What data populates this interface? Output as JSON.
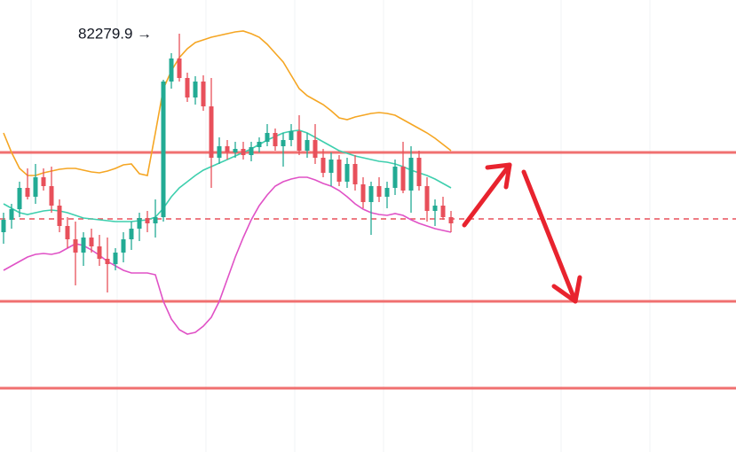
{
  "chart_data": {
    "type": "candlestick",
    "annotation": "82279.9 →",
    "ylim": [
      77560,
      82660
    ],
    "up_color": "#22ab94",
    "down_color": "#e8505b",
    "open": [
      80040,
      80180,
      80300,
      80540,
      80440,
      80660,
      80560,
      80340,
      80110,
      79960,
      79810,
      79980,
      79880,
      79740,
      79680,
      79810,
      79960,
      80080,
      80200,
      80140,
      80210,
      81740,
      82000,
      81780,
      81560,
      81740,
      81460,
      80880,
      81010,
      80940,
      80980,
      80910,
      81000,
      81060,
      81160,
      81010,
      81080,
      81180,
      80960,
      81080,
      80880,
      80710,
      80860,
      80610,
      80810,
      80580,
      80380,
      80560,
      80440,
      80540,
      80780,
      80510,
      80880,
      80560,
      80280,
      80340,
      80210
    ],
    "high": [
      80260,
      80360,
      80610,
      80760,
      80810,
      80760,
      80780,
      80410,
      80210,
      80160,
      80040,
      80080,
      80010,
      79980,
      79860,
      80040,
      80160,
      80260,
      80280,
      80410,
      81760,
      82060,
      82279.9,
      81840,
      81800,
      81810,
      81780,
      81110,
      81080,
      81060,
      81060,
      81060,
      81110,
      81260,
      81210,
      81160,
      81260,
      81360,
      81160,
      81260,
      80980,
      80940,
      80910,
      80880,
      80910,
      80660,
      80610,
      80660,
      80610,
      80860,
      81060,
      81010,
      80960,
      80660,
      80410,
      80440,
      80280
    ],
    "low": [
      79910,
      80080,
      80210,
      80410,
      80360,
      80510,
      80260,
      80040,
      79860,
      79440,
      79660,
      79810,
      79660,
      79360,
      79610,
      79700,
      79840,
      79940,
      80040,
      79980,
      80160,
      81660,
      81740,
      81510,
      81480,
      81410,
      80540,
      80810,
      80860,
      80880,
      80860,
      80840,
      80940,
      81010,
      80960,
      80780,
      81010,
      80910,
      80880,
      80810,
      80660,
      80560,
      80560,
      80540,
      80510,
      80310,
      80010,
      80380,
      80310,
      80460,
      80480,
      80260,
      80510,
      80160,
      80110,
      80180,
      80040
    ],
    "close": [
      80180,
      80300,
      80540,
      80440,
      80660,
      80560,
      80340,
      80110,
      79960,
      79810,
      79980,
      79880,
      79740,
      79680,
      79810,
      79960,
      80080,
      80200,
      80140,
      80210,
      81740,
      82000,
      81780,
      81560,
      81740,
      81460,
      80880,
      81010,
      80940,
      80980,
      80910,
      81000,
      81060,
      81160,
      81010,
      81080,
      81180,
      80960,
      81080,
      80880,
      80710,
      80860,
      80610,
      80810,
      80580,
      80380,
      80560,
      80440,
      80540,
      80780,
      80510,
      80880,
      80560,
      80280,
      80340,
      80210,
      80140
    ],
    "bands": [
      {
        "color": "#f5a623",
        "values": [
          81160,
          80940,
          80760,
          80680,
          80680,
          80710,
          80730,
          80750,
          80760,
          80760,
          80740,
          80720,
          80710,
          80730,
          80760,
          80800,
          80810,
          80700,
          80680,
          81160,
          81660,
          81860,
          82010,
          82110,
          82180,
          82210,
          82240,
          82260,
          82280,
          82300,
          82310,
          82280,
          82240,
          82160,
          82060,
          81960,
          81810,
          81660,
          81580,
          81530,
          81480,
          81410,
          81330,
          81310,
          81340,
          81360,
          81380,
          81390,
          81380,
          81360,
          81310,
          81260,
          81210,
          81160,
          81100,
          81030,
          80960
        ]
      },
      {
        "color": "#3ecfae",
        "values": [
          80360,
          80310,
          80260,
          80240,
          80260,
          80280,
          80290,
          80280,
          80260,
          80230,
          80200,
          80190,
          80180,
          80170,
          80160,
          80160,
          80160,
          80170,
          80180,
          80210,
          80310,
          80440,
          80540,
          80610,
          80680,
          80740,
          80780,
          80820,
          80860,
          80900,
          80940,
          80980,
          81030,
          81080,
          81120,
          81160,
          81180,
          81190,
          81160,
          81110,
          81060,
          81010,
          80960,
          80930,
          80900,
          80880,
          80860,
          80840,
          80830,
          80810,
          80780,
          80740,
          80710,
          80680,
          80640,
          80590,
          80540
        ]
      },
      {
        "color": "#e052c6",
        "values": [
          79610,
          79660,
          79710,
          79760,
          79790,
          79800,
          79790,
          79810,
          79860,
          79910,
          79890,
          79840,
          79780,
          79710,
          79660,
          79610,
          79580,
          79580,
          79580,
          79560,
          79260,
          79060,
          78940,
          78890,
          78910,
          78980,
          79080,
          79260,
          79510,
          79760,
          79980,
          80180,
          80340,
          80460,
          80560,
          80610,
          80640,
          80660,
          80660,
          80630,
          80590,
          80560,
          80510,
          80440,
          80360,
          80300,
          80260,
          80240,
          80230,
          80250,
          80230,
          80180,
          80140,
          80110,
          80080,
          80060,
          80040
        ]
      }
    ],
    "levels": [
      {
        "value": 80940,
        "style": "solid",
        "color": "#f07070"
      },
      {
        "value": 80190,
        "style": "dashed",
        "color": "#e8505b"
      },
      {
        "value": 79260,
        "style": "solid",
        "color": "#f07070"
      },
      {
        "value": 78280,
        "style": "solid",
        "color": "#f07070"
      }
    ]
  }
}
